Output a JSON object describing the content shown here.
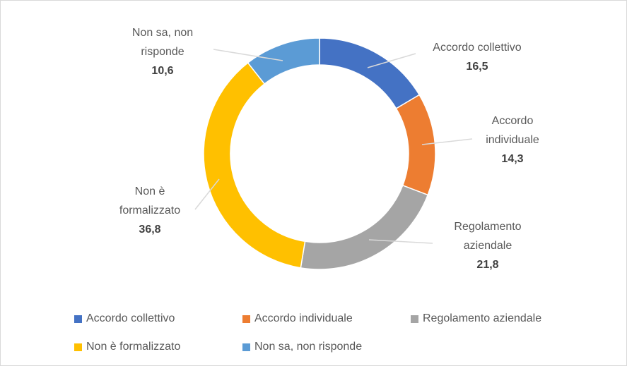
{
  "chart_data": {
    "type": "donut",
    "categories": [
      "Accordo collettivo",
      "Accordo individuale",
      "Regolamento aziendale",
      "Non è formalizzato",
      "Non sa, non risponde"
    ],
    "values": [
      16.5,
      14.3,
      21.8,
      36.8,
      10.6
    ],
    "value_labels": [
      "16,5",
      "14,3",
      "21,8",
      "36,8",
      "10,6"
    ],
    "colors": [
      "#4472c4",
      "#ed7d31",
      "#a5a5a5",
      "#ffc000",
      "#5b9bd5"
    ],
    "legend": "bottom"
  }
}
